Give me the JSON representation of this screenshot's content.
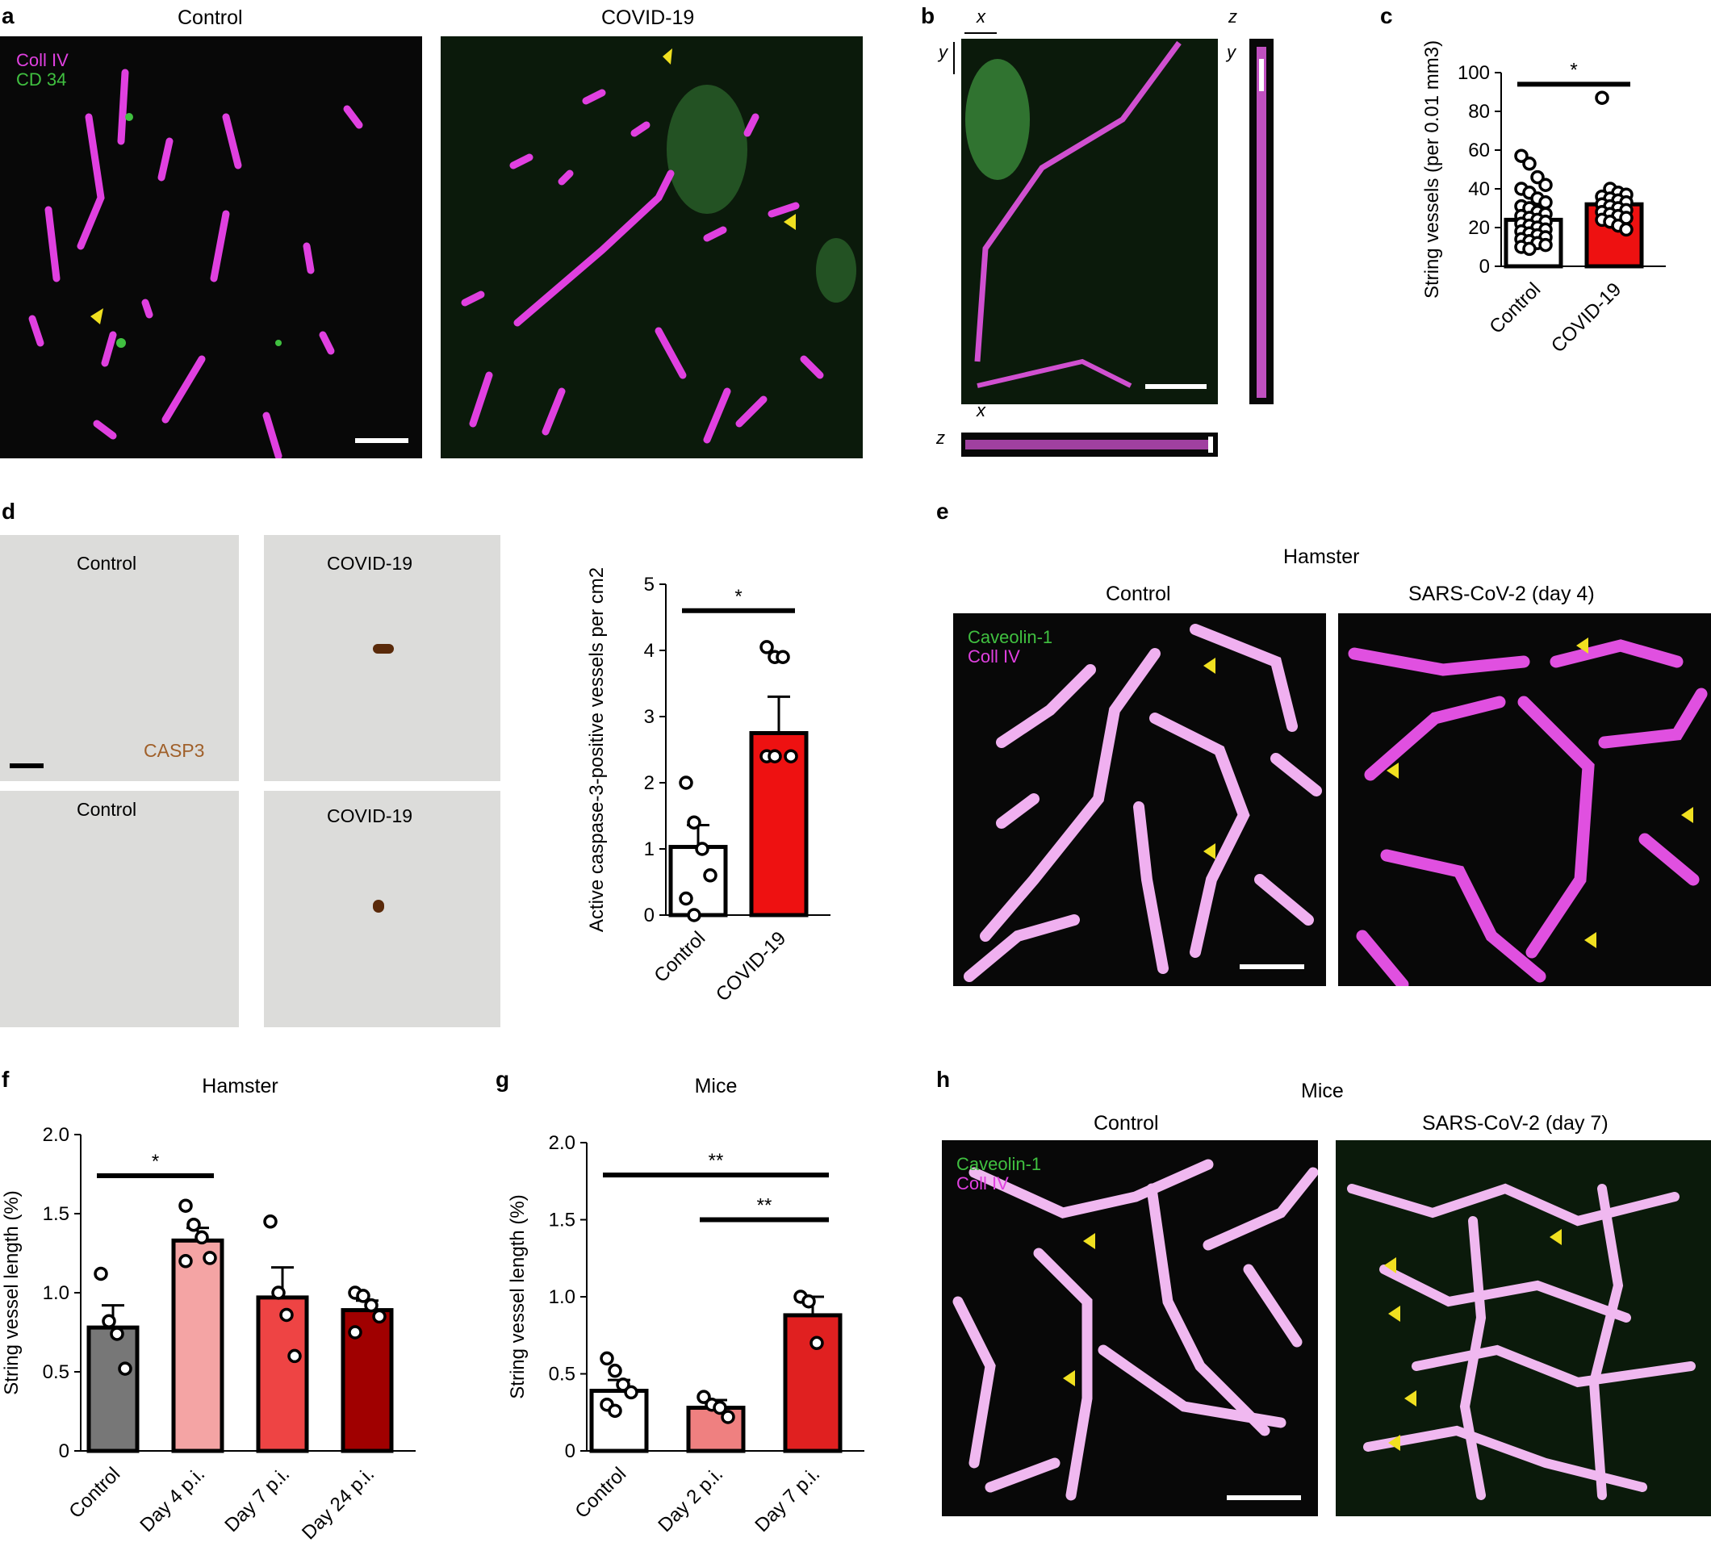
{
  "panels": {
    "a": {
      "label": "a",
      "left_title": "Control",
      "right_title": "COVID-19",
      "legend": [
        "Coll IV",
        "CD 34"
      ]
    },
    "b": {
      "label": "b",
      "axes": [
        "x",
        "y",
        "z",
        "y",
        "x",
        "z"
      ]
    },
    "c": {
      "label": "c"
    },
    "d": {
      "label": "d",
      "images": [
        "Control",
        "COVID-19",
        "Control",
        "COVID-19"
      ],
      "stain": "CASP3"
    },
    "e": {
      "label": "e",
      "title": "Hamster",
      "left_title": "Control",
      "right_title": "SARS-CoV-2 (day 4)",
      "legend": [
        "Caveolin-1",
        "Coll IV"
      ]
    },
    "f": {
      "label": "f"
    },
    "g": {
      "label": "g"
    },
    "h": {
      "label": "h",
      "title": "Mice",
      "left_title": "Control",
      "right_title": "SARS-CoV-2 (day 7)",
      "legend": [
        "Caveolin-1",
        "Coll IV"
      ]
    }
  },
  "colors": {
    "magenta": "#e040e0",
    "green": "#40c040",
    "red": "#ee0000",
    "yellow": "#f0e020"
  },
  "chart_data": [
    {
      "id": "c",
      "type": "bar",
      "categories": [
        "Control",
        "COVID-19"
      ],
      "values": [
        24,
        32
      ],
      "errors": [
        3,
        2
      ],
      "colors": [
        "#ffffff",
        "#ee1111"
      ],
      "points": [
        [
          57,
          53,
          46,
          42,
          40,
          38,
          35,
          33,
          31,
          30,
          28,
          27,
          26,
          25,
          24,
          23,
          22,
          21,
          20,
          19,
          18,
          17,
          16,
          15,
          14,
          13,
          12,
          11,
          10,
          9
        ],
        [
          87,
          40,
          38,
          37,
          36,
          35,
          34,
          33,
          32,
          31,
          30,
          29,
          28,
          27,
          26,
          25,
          24,
          23,
          21,
          19
        ]
      ],
      "ylabel": "String vessels (per 0.01 mm3)",
      "yticks": [
        "0",
        "20",
        "40",
        "60",
        "80",
        "100"
      ],
      "ylim": [
        0,
        100
      ],
      "sig": [
        {
          "from": 0,
          "to": 1,
          "level": 94,
          "label": "*"
        }
      ]
    },
    {
      "id": "d",
      "type": "bar",
      "categories": [
        "Control",
        "COVID-19"
      ],
      "values": [
        1.03,
        2.75
      ],
      "errors": [
        0.33,
        0.55
      ],
      "colors": [
        "#ffffff",
        "#ee1111"
      ],
      "points": [
        [
          2.0,
          1.4,
          1.0,
          0.6,
          0.25,
          0.0
        ],
        [
          4.05,
          3.9,
          3.9,
          2.4,
          2.4,
          2.4
        ]
      ],
      "ylabel": "Active caspase-3-positive vessels per cm2",
      "yticks": [
        "0",
        "1",
        "2",
        "3",
        "4",
        "5"
      ],
      "ylim": [
        0,
        5
      ],
      "sig": [
        {
          "from": 0,
          "to": 1,
          "level": 4.6,
          "label": "*"
        }
      ]
    },
    {
      "id": "f",
      "type": "bar",
      "title": "Hamster",
      "categories": [
        "Control",
        "Day 4 p.i.",
        "Day 7 p.i.",
        "Day 24 p.i."
      ],
      "values": [
        0.78,
        1.33,
        0.97,
        0.89
      ],
      "errors": [
        0.14,
        0.08,
        0.19,
        0.06
      ],
      "colors": [
        "#777777",
        "#f4a4a4",
        "#ee4444",
        "#a00000"
      ],
      "points": [
        [
          1.12,
          0.82,
          0.74,
          0.52
        ],
        [
          1.55,
          1.43,
          1.35,
          1.22,
          1.2
        ],
        [
          1.45,
          1.0,
          0.86,
          0.6
        ],
        [
          1.0,
          0.98,
          0.92,
          0.85,
          0.75
        ]
      ],
      "ylabel": "String vessel length (%)",
      "yticks": [
        "0",
        "0.5",
        "1.0",
        "1.5",
        "2.0"
      ],
      "ylim": [
        0,
        2.0
      ],
      "sig": [
        {
          "from": 0,
          "to": 1,
          "level": 1.74,
          "label": "*"
        }
      ]
    },
    {
      "id": "g",
      "type": "bar",
      "title": "Mice",
      "categories": [
        "Control",
        "Day 2 p.i.",
        "Day 7 p.i."
      ],
      "values": [
        0.39,
        0.28,
        0.88
      ],
      "errors": [
        0.07,
        0.05,
        0.12
      ],
      "colors": [
        "#ffffff",
        "#ef8080",
        "#e02020"
      ],
      "points": [
        [
          0.6,
          0.52,
          0.43,
          0.38,
          0.3,
          0.26
        ],
        [
          0.35,
          0.3,
          0.28,
          0.22
        ],
        [
          1.0,
          0.97,
          0.7
        ]
      ],
      "ylabel": "String vessel length (%)",
      "yticks": [
        "0",
        "0.5",
        "1.0",
        "1.5",
        "2.0"
      ],
      "ylim": [
        0,
        2.0
      ],
      "sig": [
        {
          "from": 0,
          "to": 2,
          "level": 1.79,
          "label": "**"
        },
        {
          "from": 1,
          "to": 2,
          "level": 1.5,
          "label": "**"
        }
      ]
    }
  ]
}
